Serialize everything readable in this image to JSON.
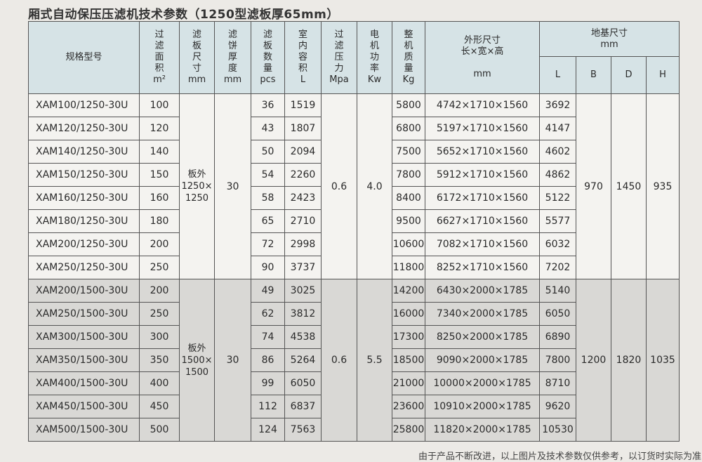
{
  "title": "厢式自动保压压滤机技术参数（1250型滤板厚65mm）",
  "headers": {
    "model": "规格型号",
    "area": "过滤面积",
    "area_unit": "m²",
    "plate_size": "滤板尺寸",
    "plate_size_unit": "mm",
    "cake": "滤饼厚度",
    "cake_unit": "mm",
    "plate_count": "滤板数量",
    "plate_count_unit": "pcs",
    "volume": "室内容积",
    "volume_unit": "L",
    "pressure": "过滤压力",
    "pressure_unit": "Mpa",
    "motor": "电机功率",
    "motor_unit": "Kw",
    "weight": "整机质量",
    "weight_unit": "Kg",
    "dims": "外形尺寸",
    "dims_sub": "长×宽×高",
    "dims_unit": "mm",
    "foundation": "地基尺寸",
    "foundation_unit": "mm",
    "L": "L",
    "B": "B",
    "D": "D",
    "H": "H"
  },
  "groups": [
    {
      "plate_size": "板外1250×1250",
      "cake": "30",
      "pressure": "0.6",
      "motor": "4.0",
      "B": "970",
      "D": "1450",
      "H": "935",
      "rows": [
        {
          "model": "XAM100/1250-30U",
          "area": "100",
          "count": "36",
          "volume": "1519",
          "weight": "5800",
          "dims": "4742×1710×1560",
          "L": "3692"
        },
        {
          "model": "XAM120/1250-30U",
          "area": "120",
          "count": "43",
          "volume": "1807",
          "weight": "6800",
          "dims": "5197×1710×1560",
          "L": "4147"
        },
        {
          "model": "XAM140/1250-30U",
          "area": "140",
          "count": "50",
          "volume": "2094",
          "weight": "7500",
          "dims": "5652×1710×1560",
          "L": "4602"
        },
        {
          "model": "XAM150/1250-30U",
          "area": "150",
          "count": "54",
          "volume": "2260",
          "weight": "7800",
          "dims": "5912×1710×1560",
          "L": "4862"
        },
        {
          "model": "XAM160/1250-30U",
          "area": "160",
          "count": "58",
          "volume": "2423",
          "weight": "8400",
          "dims": "6172×1710×1560",
          "L": "5122"
        },
        {
          "model": "XAM180/1250-30U",
          "area": "180",
          "count": "65",
          "volume": "2710",
          "weight": "9500",
          "dims": "6627×1710×1560",
          "L": "5577"
        },
        {
          "model": "XAM200/1250-30U",
          "area": "200",
          "count": "72",
          "volume": "2998",
          "weight": "10600",
          "dims": "7082×1710×1560",
          "L": "6032"
        },
        {
          "model": "XAM250/1250-30U",
          "area": "250",
          "count": "90",
          "volume": "3737",
          "weight": "11800",
          "dims": "8252×1710×1560",
          "L": "7202"
        }
      ]
    },
    {
      "plate_size": "板外1500×1500",
      "cake": "30",
      "pressure": "0.6",
      "motor": "5.5",
      "B": "1200",
      "D": "1820",
      "H": "1035",
      "rows": [
        {
          "model": "XAM200/1500-30U",
          "area": "200",
          "count": "49",
          "volume": "3025",
          "weight": "14200",
          "dims": "6430×2000×1785",
          "L": "5140"
        },
        {
          "model": "XAM250/1500-30U",
          "area": "250",
          "count": "62",
          "volume": "3812",
          "weight": "16000",
          "dims": "7340×2000×1785",
          "L": "6050"
        },
        {
          "model": "XAM300/1500-30U",
          "area": "300",
          "count": "74",
          "volume": "4538",
          "weight": "17300",
          "dims": "8250×2000×1785",
          "L": "6890"
        },
        {
          "model": "XAM350/1500-30U",
          "area": "350",
          "count": "86",
          "volume": "5264",
          "weight": "18500",
          "dims": "9090×2000×1785",
          "L": "7800"
        },
        {
          "model": "XAM400/1500-30U",
          "area": "400",
          "count": "99",
          "volume": "6050",
          "weight": "21000",
          "dims": "10000×2000×1785",
          "L": "8710"
        },
        {
          "model": "XAM450/1500-30U",
          "area": "450",
          "count": "112",
          "volume": "6837",
          "weight": "23600",
          "dims": "10910×2000×1785",
          "L": "9620"
        },
        {
          "model": "XAM500/1500-30U",
          "area": "500",
          "count": "124",
          "volume": "7563",
          "weight": "25800",
          "dims": "11820×2000×1785",
          "L": "10530"
        }
      ]
    }
  ],
  "footnote": "由于产品不断改进，以上图片及技术参数仅供参考，以订货时实际为准"
}
